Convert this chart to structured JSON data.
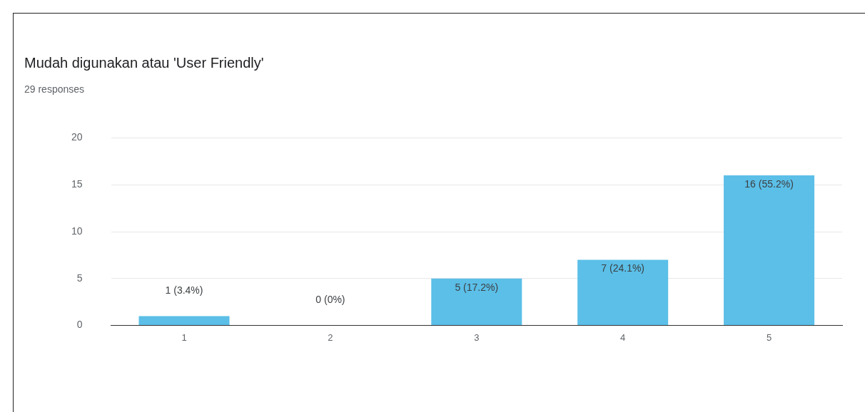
{
  "chart_data": {
    "type": "bar",
    "title": "Mudah digunakan atau 'User Friendly'",
    "subtitle": "29 responses",
    "categories": [
      "1",
      "2",
      "3",
      "4",
      "5"
    ],
    "values": [
      1,
      0,
      5,
      7,
      16
    ],
    "value_labels": [
      "1 (3.4%)",
      "0 (0%)",
      "5 (17.2%)",
      "7 (24.1%)",
      "16 (55.2%)"
    ],
    "color": "#5bbfe8",
    "ylim": [
      0,
      20
    ],
    "yticks": [
      0,
      5,
      10,
      15,
      20
    ],
    "grid": "y",
    "legend": false
  }
}
